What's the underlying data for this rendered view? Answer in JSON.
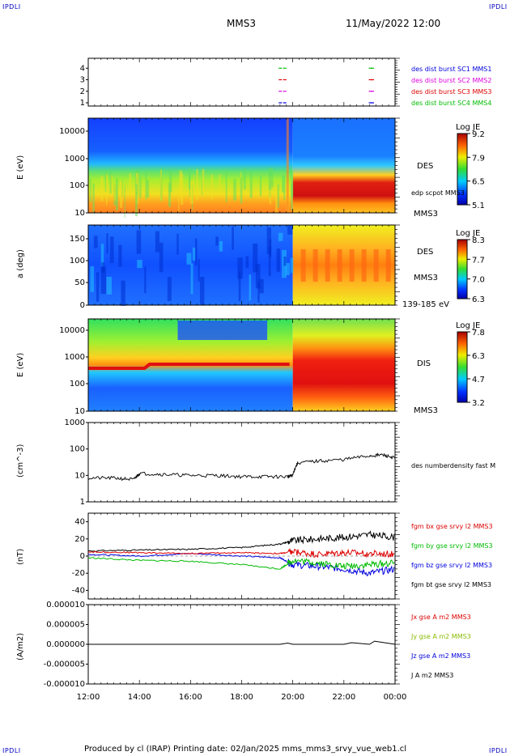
{
  "header": {
    "corner_tl": "IPDLI",
    "corner_tr": "IPDLI",
    "corner_bl": "IPDLI",
    "corner_br": "IPDLI",
    "spacecraft": "MMS3",
    "datetime": "11/May/2022 12:00"
  },
  "footer": {
    "text": "Produced by cl (IRAP)   Printing date: 02/Jan/2025   mms_mms3_srvy_vue_web1.cl"
  },
  "time_axis": {
    "ticks": [
      "12:00",
      "14:00",
      "16:00",
      "18:00",
      "20:00",
      "22:00",
      "00:00"
    ]
  },
  "chart_data": [
    {
      "id": "burst",
      "type": "scatter",
      "y_ticks": [
        "4",
        "3",
        "2",
        "1"
      ],
      "legend": [
        {
          "label": "des dist burst SC1 MMS1",
          "color": "#0000dd"
        },
        {
          "label": "des dist burst SC2 MMS2",
          "color": "#dd00dd"
        },
        {
          "label": "des dist burst SC3 MMS3",
          "color": "#dd0000"
        },
        {
          "label": "des dist burst SC4 MMS4",
          "color": "#00bb00"
        }
      ],
      "segments": [
        {
          "sc": 4,
          "start_h": 19.45,
          "end_h": 19.75,
          "color": "#00bb00"
        },
        {
          "sc": 4,
          "start_h": 23.05,
          "end_h": 23.1,
          "color": "#00bb00"
        },
        {
          "sc": 3,
          "start_h": 19.45,
          "end_h": 19.75,
          "color": "#dd0000"
        },
        {
          "sc": 3,
          "start_h": 23.05,
          "end_h": 23.1,
          "color": "#dd0000"
        },
        {
          "sc": 2,
          "start_h": 19.45,
          "end_h": 19.75,
          "color": "#dd00dd"
        },
        {
          "sc": 2,
          "start_h": 23.05,
          "end_h": 23.1,
          "color": "#dd00dd"
        },
        {
          "sc": 1,
          "start_h": 19.45,
          "end_h": 19.75,
          "color": "#0000dd"
        },
        {
          "sc": 1,
          "start_h": 23.05,
          "end_h": 23.1,
          "color": "#0000dd"
        }
      ]
    },
    {
      "id": "des-energy",
      "type": "heatmap",
      "ylabel": "E (eV)",
      "y_ticks": [
        "10000",
        "1000",
        "100",
        "10"
      ],
      "right_label": "DES",
      "right_sub": "MMS3",
      "overlay_label": "edp scpot MMS3",
      "colorbar": {
        "title": "Log JE",
        "ticks": [
          "9.2",
          "7.9",
          "6.5",
          "5.1"
        ]
      }
    },
    {
      "id": "des-pitch",
      "type": "heatmap",
      "ylabel": "a (deg)",
      "y_ticks": [
        "150",
        "100",
        "50",
        "0"
      ],
      "right_label": "DES",
      "right_sub": "MMS3",
      "extra_label": "139-185 eV",
      "colorbar": {
        "title": "Log JE",
        "ticks": [
          "8.3",
          "7.7",
          "7.0",
          "6.3"
        ]
      }
    },
    {
      "id": "dis-energy",
      "type": "heatmap",
      "ylabel": "E (eV)",
      "y_ticks": [
        "10000",
        "1000",
        "100",
        "10"
      ],
      "right_label": "DIS",
      "right_sub": "MMS3",
      "colorbar": {
        "title": "Log JE",
        "ticks": [
          "7.8",
          "6.3",
          "4.7",
          "3.2"
        ]
      }
    },
    {
      "id": "density",
      "type": "line",
      "ylabel": "(cm^-3)",
      "y_ticks": [
        "1000",
        "100",
        "10",
        "1"
      ],
      "y_scale": "log",
      "ylim": [
        1,
        1000
      ],
      "legend": [
        {
          "label": "des numberdensity fast M",
          "color": "#000000"
        }
      ],
      "series": [
        {
          "x_h": [
            12,
            13,
            13.8,
            14,
            15,
            16,
            17,
            18,
            19,
            19.8,
            20.0,
            20.2,
            21,
            22,
            23,
            23.5,
            24
          ],
          "values": [
            8,
            8,
            7,
            12,
            11,
            10,
            10,
            9,
            9,
            9,
            10,
            30,
            35,
            40,
            55,
            60,
            45
          ]
        }
      ]
    },
    {
      "id": "fgm",
      "type": "line",
      "ylabel": "(nT)",
      "y_ticks": [
        "40",
        "20",
        "0",
        "-20",
        "-40"
      ],
      "ylim": [
        -50,
        50
      ],
      "legend": [
        {
          "label": "fgm bx gse srvy l2 MMS3",
          "color": "#dd0000"
        },
        {
          "label": "fgm by gse srvy l2 MMS3",
          "color": "#00bb00"
        },
        {
          "label": "fgm bz gse srvy l2 MMS3",
          "color": "#0000dd"
        },
        {
          "label": "fgm bt gse srvy l2 MMS3",
          "color": "#000000"
        }
      ],
      "series": [
        {
          "name": "bx",
          "color": "#dd0000",
          "x_h": [
            12,
            14,
            16,
            18,
            19.5,
            20,
            21,
            22,
            23,
            24
          ],
          "values": [
            5,
            4,
            3,
            4,
            3,
            5,
            2,
            4,
            3,
            2
          ]
        },
        {
          "name": "by",
          "color": "#00bb00",
          "x_h": [
            12,
            14,
            16,
            18,
            19.5,
            20,
            21,
            22,
            23,
            24
          ],
          "values": [
            -2,
            -5,
            -6,
            -10,
            -15,
            -5,
            -8,
            -12,
            -10,
            -8
          ]
        },
        {
          "name": "bz",
          "color": "#0000dd",
          "x_h": [
            12,
            14,
            16,
            18,
            19.5,
            20,
            21,
            22,
            23,
            24
          ],
          "values": [
            2,
            0,
            3,
            0,
            -2,
            -10,
            -12,
            -15,
            -20,
            -15
          ]
        },
        {
          "name": "bt",
          "color": "#000000",
          "x_h": [
            12,
            14,
            16,
            18,
            19.5,
            20,
            21,
            22,
            23,
            24
          ],
          "values": [
            6,
            7,
            8,
            10,
            14,
            18,
            20,
            22,
            25,
            22
          ]
        }
      ]
    },
    {
      "id": "current",
      "type": "line",
      "ylabel": "(A/m2)",
      "y_ticks": [
        "0.000010",
        "0.000005",
        "0.000000",
        "-0.000005",
        "-0.000010"
      ],
      "ylim": [
        -1e-05,
        1e-05
      ],
      "legend": [
        {
          "label": "Jx gse A m2 MMS3",
          "color": "#dd0000"
        },
        {
          "label": "Jy gse A m2 MMS3",
          "color": "#88bb00"
        },
        {
          "label": "Jz gse A m2 MMS3",
          "color": "#0000dd"
        },
        {
          "label": "J A m2 MMS3",
          "color": "#000000"
        }
      ],
      "series": [
        {
          "name": "J",
          "color": "#000000",
          "x_h": [
            12,
            19.5,
            19.8,
            20,
            22,
            22.3,
            23,
            23.2,
            24
          ],
          "values": [
            0,
            0,
            3e-07,
            0,
            0,
            4e-07,
            0,
            8e-07,
            0
          ]
        }
      ]
    }
  ]
}
